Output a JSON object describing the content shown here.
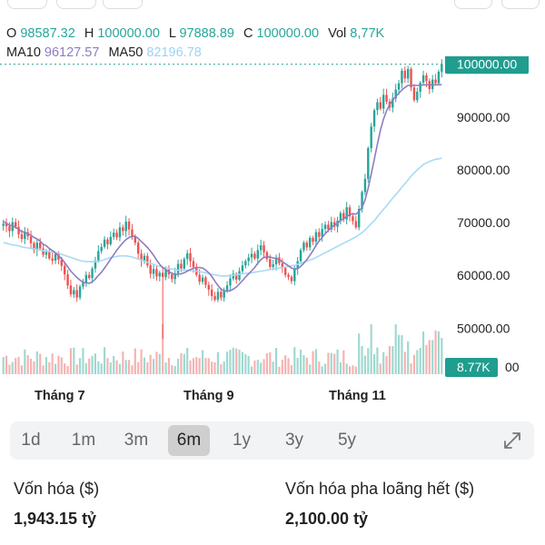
{
  "ohlc": {
    "o_label": "O",
    "o": "98587.32",
    "h_label": "H",
    "h": "100000.00",
    "l_label": "L",
    "l": "97888.89",
    "c_label": "C",
    "c": "100000.00",
    "vol_label": "Vol",
    "vol": "8,77K",
    "ma10_label": "MA10",
    "ma10": "96127.57",
    "ma50_label": "MA50",
    "ma50": "82196.78"
  },
  "colors": {
    "up": "#26a69a",
    "down": "#ef5350",
    "ma10": "#8e7cc3",
    "ma50": "#a8daf5",
    "price_tag": "#1f9d8f"
  },
  "chart_data": {
    "type": "candlestick",
    "y_ticks": [
      "100000.00",
      "90000.00",
      "80000.00",
      "70000.00",
      "60000.00",
      "50000.00"
    ],
    "y_range": [
      43000,
      101500
    ],
    "x_ticks": [
      "Tháng 7",
      "Tháng 9",
      "Tháng 11"
    ],
    "current_price_label": "100000.00",
    "volume_label": "8.77K",
    "volume_axis_stub": "00",
    "close_series": [
      69800,
      69300,
      68400,
      70100,
      69200,
      67800,
      66900,
      68200,
      67400,
      66100,
      64800,
      66200,
      65100,
      63900,
      64500,
      63200,
      62800,
      64100,
      63000,
      61800,
      60200,
      58100,
      56400,
      57200,
      55800,
      57900,
      58600,
      60100,
      59500,
      61300,
      62800,
      64600,
      65400,
      66800,
      65900,
      67300,
      68100,
      67200,
      69100,
      68400,
      70200,
      68700,
      67400,
      66200,
      64100,
      62800,
      63700,
      61900,
      60300,
      61200,
      59800,
      60500,
      59700,
      61100,
      60200,
      59300,
      60400,
      62200,
      61300,
      63100,
      64200,
      62700,
      61600,
      60100,
      58800,
      59600,
      58200,
      57300,
      56100,
      55400,
      56900,
      55800,
      57200,
      58100,
      59400,
      60300,
      59200,
      60800,
      61900,
      62700,
      63400,
      64100,
      63200,
      64800,
      65700,
      64400,
      63100,
      61600,
      62100,
      63400,
      62300,
      61400,
      60100,
      59700,
      58900,
      61200,
      62700,
      64800,
      66200,
      65300,
      67100,
      66400,
      68200,
      67300,
      68800,
      69600,
      68700,
      70100,
      69200,
      70400,
      71800,
      70600,
      72900,
      71200,
      70300,
      69100,
      72600,
      75800,
      78300,
      84100,
      88200,
      91300,
      92800,
      91600,
      94200,
      92900,
      91800,
      93500,
      95200,
      96400,
      98800,
      97300,
      99100,
      95600,
      93200,
      94800,
      96500,
      97900,
      96800,
      95300,
      97100,
      96400,
      98587,
      100000
    ],
    "ma10_series": [
      70200,
      69900,
      69500,
      69400,
      69100,
      68700,
      68300,
      68200,
      67900,
      67600,
      67200,
      66900,
      66500,
      65900,
      65600,
      65100,
      64700,
      64300,
      63700,
      63200,
      62400,
      61600,
      60800,
      60200,
      59600,
      59100,
      58700,
      58600,
      58500,
      58800,
      59300,
      60000,
      60600,
      61400,
      62200,
      63100,
      63900,
      64800,
      65500,
      66200,
      66800,
      67200,
      67400,
      67400,
      67000,
      66400,
      65900,
      65300,
      64600,
      63800,
      62900,
      62100,
      61500,
      61100,
      60700,
      60400,
      60200,
      60200,
      60300,
      60500,
      60800,
      61100,
      61400,
      61500,
      61500,
      61400,
      61000,
      60500,
      59800,
      58900,
      58100,
      57400,
      57100,
      57000,
      57100,
      57400,
      57800,
      58400,
      59000,
      59700,
      60300,
      60900,
      61500,
      62300,
      63000,
      63400,
      63500,
      63500,
      63300,
      63200,
      63000,
      62600,
      62200,
      61800,
      61400,
      61200,
      61300,
      61700,
      62300,
      63000,
      63800,
      64700,
      65700,
      66500,
      67200,
      67900,
      68500,
      69100,
      69500,
      69900,
      70400,
      70700,
      71200,
      71500,
      71700,
      71600,
      72100,
      72900,
      74300,
      76500,
      79200,
      82000,
      84800,
      87500,
      89600,
      91200,
      92300,
      93200,
      93900,
      94500,
      95100,
      95600,
      96000,
      96000,
      96000,
      96000,
      96000,
      96100,
      96100,
      96100,
      96100,
      96100,
      96120,
      96127
    ],
    "ma50_series": [
      66200,
      66100,
      65900,
      65800,
      65700,
      65600,
      65400,
      65300,
      65200,
      65100,
      65000,
      64900,
      64800,
      64700,
      64600,
      64500,
      64400,
      64300,
      64200,
      64000,
      63800,
      63600,
      63400,
      63200,
      63000,
      62800,
      62700,
      62600,
      62600,
      62600,
      62600,
      62700,
      62800,
      63000,
      63200,
      63400,
      63500,
      63600,
      63700,
      63700,
      63700,
      63600,
      63500,
      63300,
      63100,
      62900,
      62700,
      62500,
      62300,
      62100,
      61900,
      61700,
      61500,
      61400,
      61300,
      61200,
      61100,
      61000,
      61000,
      61000,
      61000,
      60900,
      60900,
      60800,
      60700,
      60600,
      60500,
      60300,
      60200,
      60100,
      60000,
      59900,
      59900,
      59900,
      60000,
      60000,
      60100,
      60200,
      60300,
      60400,
      60400,
      60500,
      60600,
      60700,
      60800,
      60900,
      61000,
      61100,
      61200,
      61300,
      61400,
      61500,
      61600,
      61700,
      61800,
      61900,
      62100,
      62300,
      62500,
      62700,
      62900,
      63100,
      63400,
      63700,
      64000,
      64300,
      64600,
      64900,
      65200,
      65500,
      65800,
      66100,
      66400,
      66700,
      67000,
      67300,
      67700,
      68100,
      68600,
      69200,
      69800,
      70400,
      71100,
      71800,
      72500,
      73200,
      73900,
      74600,
      75300,
      76000,
      76700,
      77400,
      78100,
      78800,
      79400,
      80000,
      80500,
      81000,
      81300,
      81600,
      81800,
      82000,
      82100,
      82197
    ]
  },
  "timeframes": {
    "items": [
      "1d",
      "1m",
      "3m",
      "6m",
      "1y",
      "3y",
      "5y"
    ],
    "active": "6m"
  },
  "stats": {
    "market_cap_label": "Vốn hóa ($)",
    "market_cap_value": "1,943.15 tỷ",
    "fdv_label": "Vốn hóa pha loãng hết ($)",
    "fdv_value": "2,100.00 tỷ"
  }
}
